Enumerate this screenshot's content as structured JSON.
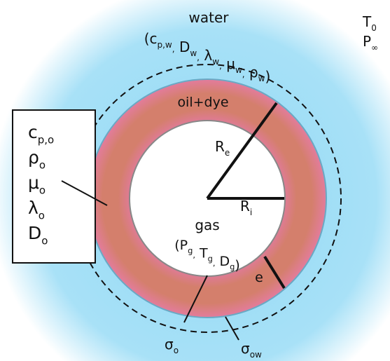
{
  "medium": {
    "label": "water",
    "brackets": [
      "(",
      ")"
    ],
    "separator": ",",
    "properties": [
      {
        "symbol": "c",
        "sub": "p,w"
      },
      {
        "symbol": "D",
        "sub": "w"
      },
      {
        "symbol": "λ",
        "sub": "w"
      },
      {
        "symbol": "μ",
        "sub": "w"
      },
      {
        "symbol": "ρ",
        "sub": "w"
      }
    ]
  },
  "ambient": [
    {
      "symbol": "T",
      "sub": "0"
    },
    {
      "symbol": "P",
      "sub": "∞"
    }
  ],
  "shell": {
    "label": "oil+dye"
  },
  "core": {
    "label": "gas",
    "brackets": [
      "(",
      ")"
    ],
    "separator": ",",
    "properties": [
      {
        "symbol": "P",
        "sub": "g"
      },
      {
        "symbol": "T",
        "sub": "g"
      },
      {
        "symbol": "D",
        "sub": "g"
      }
    ]
  },
  "radii": {
    "outer": {
      "symbol": "R",
      "sub": "e"
    },
    "inner": {
      "symbol": "R",
      "sub": "i"
    },
    "thickness": "e"
  },
  "oil_properties": [
    {
      "symbol": "c",
      "sub": "p,o"
    },
    {
      "symbol": "ρ",
      "sub": "o"
    },
    {
      "symbol": "μ",
      "sub": "o"
    },
    {
      "symbol": "λ",
      "sub": "o"
    },
    {
      "symbol": "D",
      "sub": "o"
    }
  ],
  "tensions": [
    {
      "symbol": "σ",
      "sub": "o"
    },
    {
      "symbol": "σ",
      "sub": "ow"
    }
  ]
}
